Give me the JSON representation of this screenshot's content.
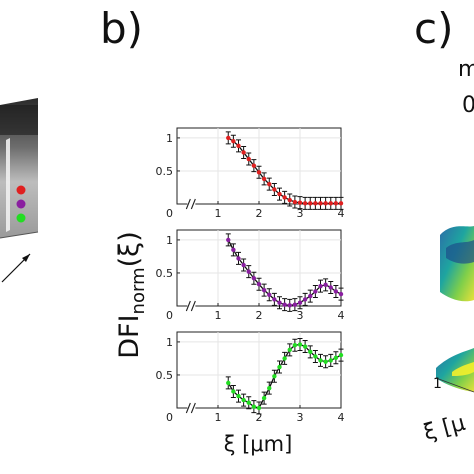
{
  "panels": {
    "b": "b)",
    "c": "c)"
  },
  "panel_c_partial": {
    "top_char": "m",
    "second_char": "0",
    "tick": "1",
    "xi_label": "ξ [μ"
  },
  "chart_data": {
    "type": "line",
    "ylabel_main": "DFI",
    "ylabel_sub": "norm",
    "ylabel_tail": "(ξ)",
    "xlabel": "ξ [μm]",
    "xlim": [
      0,
      4
    ],
    "ylim": [
      0,
      1.15
    ],
    "xticks": [
      "0",
      "1",
      "2",
      "3",
      "4"
    ],
    "yticks": [
      "0",
      "0.5",
      "1"
    ],
    "x": [
      1.25,
      1.375,
      1.5,
      1.625,
      1.75,
      1.875,
      2.0,
      2.125,
      2.25,
      2.375,
      2.5,
      2.625,
      2.75,
      2.875,
      3.0,
      3.125,
      3.25,
      3.375,
      3.5,
      3.625,
      3.75,
      3.875,
      4.0
    ],
    "series": [
      {
        "color": "#e02020",
        "marker_color": "#e02020",
        "values": [
          1.0,
          0.95,
          0.88,
          0.78,
          0.68,
          0.58,
          0.48,
          0.38,
          0.3,
          0.22,
          0.15,
          0.1,
          0.06,
          0.03,
          0.02,
          0.01,
          0.01,
          0.01,
          0.01,
          0.01,
          0.01,
          0.01,
          0.01
        ]
      },
      {
        "color": "#8a1fa0",
        "marker_color": "#8a1fa0",
        "values": [
          1.0,
          0.85,
          0.72,
          0.62,
          0.52,
          0.42,
          0.33,
          0.24,
          0.17,
          0.1,
          0.05,
          0.02,
          0.01,
          0.02,
          0.05,
          0.1,
          0.15,
          0.22,
          0.3,
          0.32,
          0.28,
          0.22,
          0.18
        ]
      },
      {
        "color": "#22dd22",
        "marker_color": "#22dd22",
        "values": [
          0.38,
          0.25,
          0.18,
          0.12,
          0.08,
          0.02,
          0.0,
          0.15,
          0.3,
          0.48,
          0.62,
          0.75,
          0.88,
          0.95,
          0.96,
          0.93,
          0.85,
          0.78,
          0.72,
          0.7,
          0.72,
          0.76,
          0.8
        ]
      }
    ]
  }
}
